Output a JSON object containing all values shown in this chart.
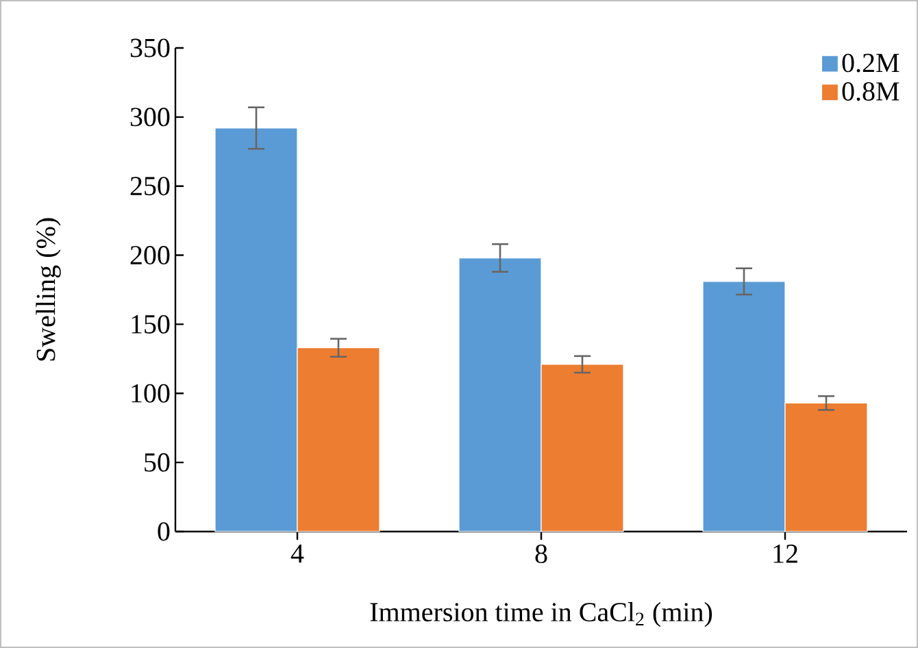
{
  "chart_data": {
    "type": "bar",
    "xlabel": "Immersion time in CaCl$_{2}$ (min)",
    "ylabel": "Swelling (%)",
    "categories": [
      "4",
      "8",
      "12"
    ],
    "series": [
      {
        "name": "0.2M",
        "color": "#5b9bd5",
        "values": [
          292,
          198,
          181
        ],
        "errors": [
          15,
          10,
          9.5
        ]
      },
      {
        "name": "0.8M",
        "color": "#ed7d31",
        "values": [
          133,
          121,
          93
        ],
        "errors": [
          6.5,
          6,
          5
        ]
      }
    ],
    "ylim": [
      0,
      350
    ],
    "yticks": [
      0,
      50,
      100,
      150,
      200,
      250,
      300,
      350
    ],
    "legend": "top right"
  }
}
